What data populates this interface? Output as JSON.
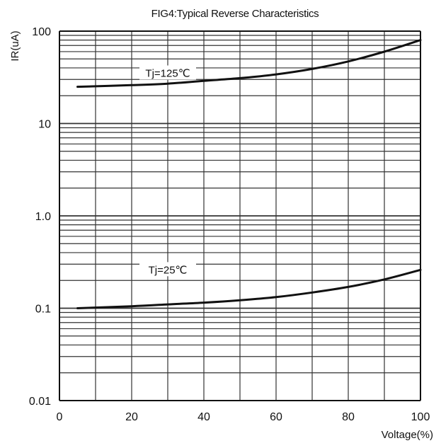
{
  "chart_data": {
    "type": "line",
    "title": "FIG4:Typical Reverse Characteristics",
    "xlabel": "Voltage(%)",
    "ylabel": "IR(uA)",
    "xlim": [
      0,
      100
    ],
    "ylim": [
      0.01,
      100
    ],
    "yscale": "log",
    "grid": true,
    "x_ticks": [
      0,
      20,
      40,
      60,
      80,
      100
    ],
    "x_tick_labels": [
      "0",
      "20",
      "40",
      "60",
      "80",
      "100"
    ],
    "y_ticks": [
      0.01,
      0.1,
      1,
      10,
      100
    ],
    "y_tick_labels": [
      "0.01",
      "0.1",
      "1.0",
      "10",
      "100"
    ],
    "series": [
      {
        "name": "Tj=125℃",
        "x": [
          5,
          20,
          30,
          40,
          50,
          60,
          70,
          80,
          90,
          100
        ],
        "y": [
          25,
          26,
          27,
          29,
          31,
          34,
          39,
          47,
          60,
          80
        ]
      },
      {
        "name": "Tj=25℃",
        "x": [
          5,
          20,
          30,
          40,
          50,
          60,
          70,
          80,
          90,
          100
        ],
        "y": [
          0.1,
          0.105,
          0.11,
          0.115,
          0.122,
          0.132,
          0.148,
          0.17,
          0.205,
          0.26
        ]
      }
    ],
    "annotations": [
      {
        "text": "Tj=125℃",
        "x": 30,
        "y": 35
      },
      {
        "text": "Tj=25℃",
        "x": 30,
        "y": 0.26
      }
    ],
    "colors": {
      "line": "#111111",
      "grid": "#333333",
      "frame": "#111111"
    }
  }
}
